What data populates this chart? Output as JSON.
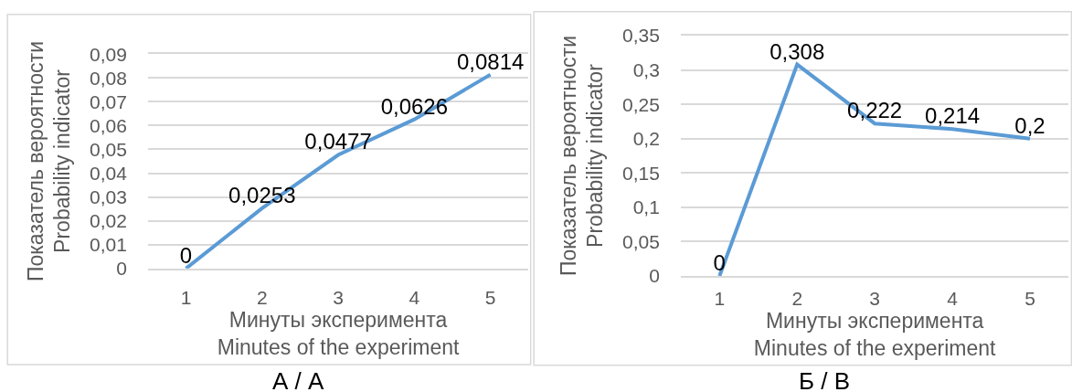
{
  "chart_data": [
    {
      "type": "line",
      "categories": [
        "1",
        "2",
        "3",
        "4",
        "5"
      ],
      "values": [
        0,
        0.0253,
        0.0477,
        0.0626,
        0.0814
      ],
      "color": "#5b9bd5",
      "value_labels": [
        "0",
        "0,0253",
        "0,0477",
        "0,0626",
        "0,0814"
      ],
      "ylim": [
        0,
        0.09
      ],
      "yticks": [
        0,
        {
          "value": 0.01,
          "label": "0,01"
        },
        {
          "value": 0.02,
          "label": "0,02"
        },
        {
          "value": 0.03,
          "label": "0,03"
        },
        {
          "value": 0.04,
          "label": "0,04"
        },
        {
          "value": 0.05,
          "label": "0,05"
        },
        {
          "value": 0.06,
          "label": "0,06"
        },
        {
          "value": 0.07,
          "label": "0,07"
        },
        {
          "value": 0.08,
          "label": "0,08"
        },
        {
          "value": 0.09,
          "label": "0,09"
        }
      ],
      "xlabel": "Минуты эксперимента\nMinutes of the experiment",
      "ylabel": "Показатель вероятности\nProbability indicator",
      "grid": "y",
      "annotations": [
        "А / А"
      ]
    },
    {
      "type": "line",
      "categories": [
        "1",
        "2",
        "3",
        "4",
        "5"
      ],
      "values": [
        0,
        0.308,
        0.222,
        0.214,
        0.2
      ],
      "color": "#5b9bd5",
      "value_labels": [
        "0",
        "0,308",
        "0,222",
        "0,214",
        "0,2"
      ],
      "ylim": [
        0,
        0.35
      ],
      "yticks": [
        0,
        {
          "value": 0.05,
          "label": "0,05"
        },
        {
          "value": 0.1,
          "label": "0,1"
        },
        {
          "value": 0.15,
          "label": "0,15"
        },
        {
          "value": 0.2,
          "label": "0,2"
        },
        {
          "value": 0.25,
          "label": "0,25"
        },
        {
          "value": 0.3,
          "label": "0,3"
        },
        {
          "value": 0.35,
          "label": "0,35"
        }
      ],
      "xlabel": "Минуты эксперимента\nMinutes of the experiment",
      "ylabel": "Показатель вероятности\nProbability indicator",
      "grid": "y",
      "annotations": [
        "Б / В"
      ]
    }
  ]
}
